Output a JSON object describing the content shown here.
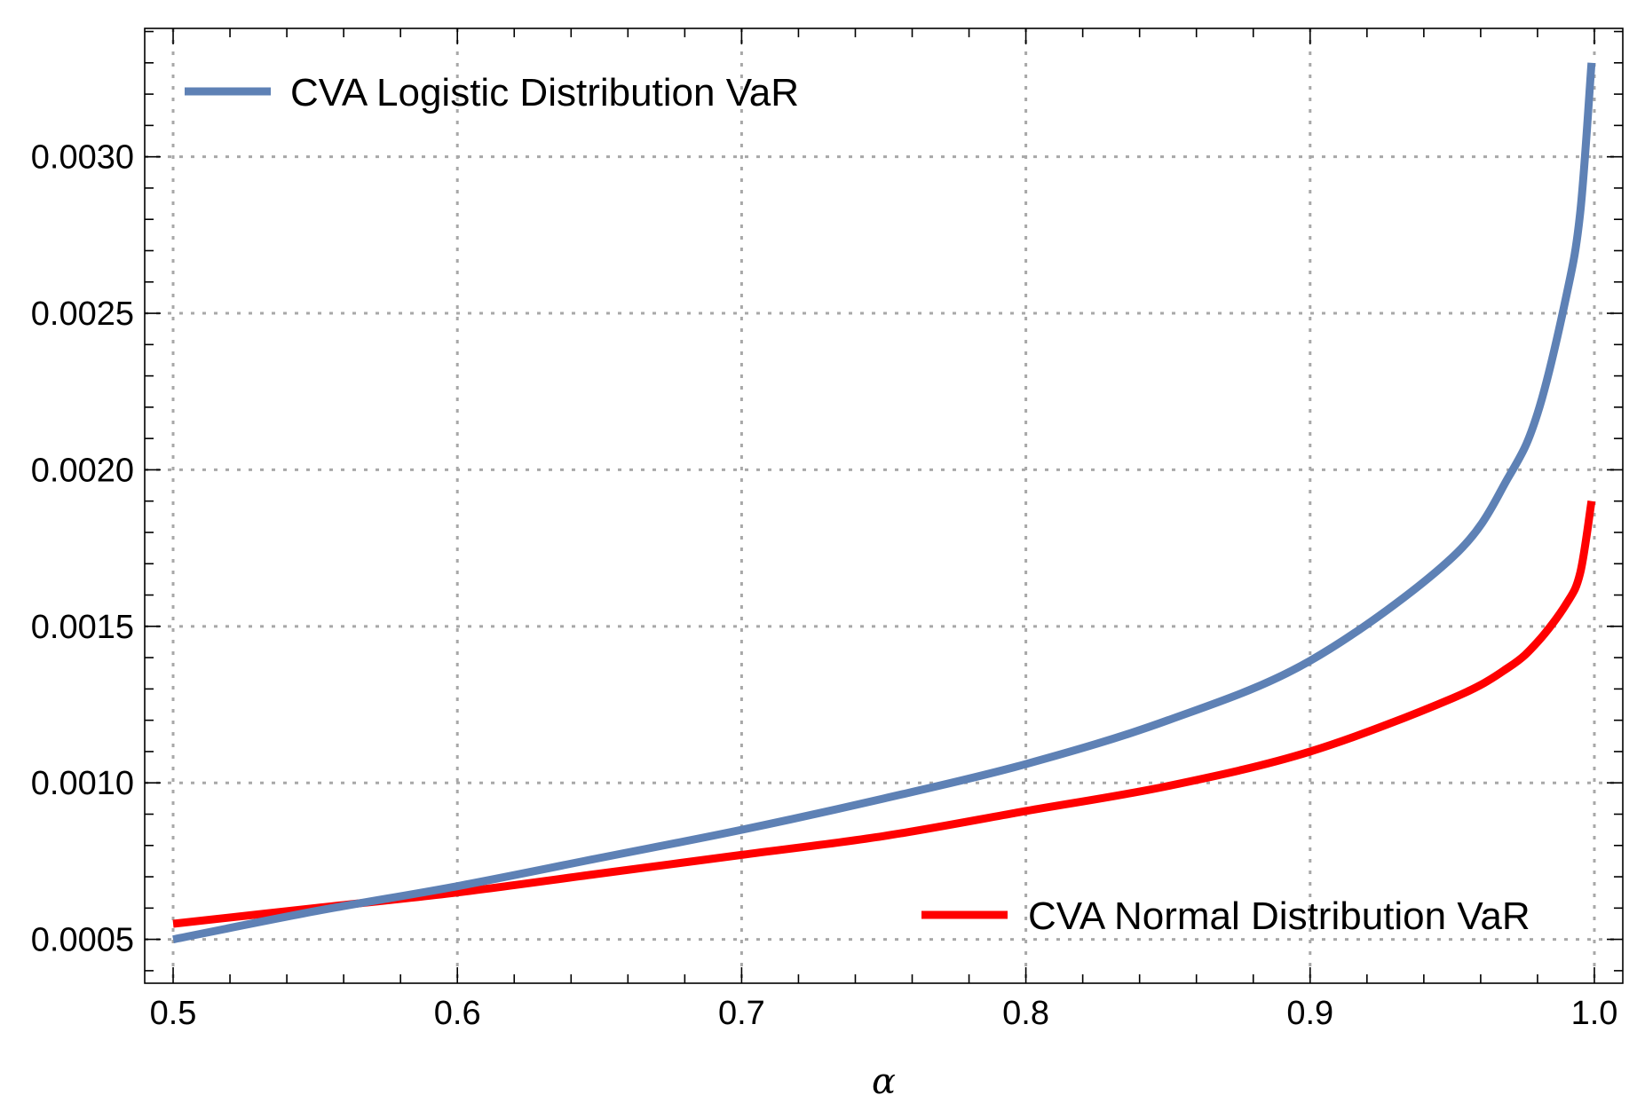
{
  "chart_data": {
    "type": "line",
    "title": "",
    "xlabel": "α",
    "ylabel": "",
    "xlim": [
      0.49,
      1.01
    ],
    "ylim": [
      0.00036,
      0.00341
    ],
    "grid": true,
    "x_ticks": [
      "0.5",
      "0.6",
      "0.7",
      "0.8",
      "0.9",
      "1.0"
    ],
    "y_ticks": [
      "0.0005",
      "0.0010",
      "0.0015",
      "0.0020",
      "0.0025",
      "0.0030"
    ],
    "series": [
      {
        "name": "CVA Logistic Distribution VaR",
        "color": "#5e81b5",
        "legend_position": "top-left",
        "x": [
          0.5,
          0.55,
          0.6,
          0.65,
          0.7,
          0.75,
          0.8,
          0.85,
          0.9,
          0.95,
          0.97,
          0.98,
          0.99,
          0.995,
          0.999
        ],
        "y": [
          0.0005,
          0.00059,
          0.00067,
          0.00076,
          0.00085,
          0.00095,
          0.00106,
          0.0012,
          0.00139,
          0.00172,
          0.00198,
          0.00218,
          0.00255,
          0.00282,
          0.0033
        ]
      },
      {
        "name": "CVA Normal Distribution VaR",
        "color": "#ff0000",
        "legend_position": "bottom-right",
        "x": [
          0.5,
          0.55,
          0.6,
          0.65,
          0.7,
          0.75,
          0.8,
          0.85,
          0.9,
          0.95,
          0.97,
          0.98,
          0.99,
          0.995,
          0.999
        ],
        "y": [
          0.00055,
          0.0006,
          0.00065,
          0.00071,
          0.00077,
          0.00083,
          0.00091,
          0.00099,
          0.0011,
          0.00127,
          0.00137,
          0.00145,
          0.00157,
          0.00167,
          0.0019
        ]
      }
    ]
  }
}
